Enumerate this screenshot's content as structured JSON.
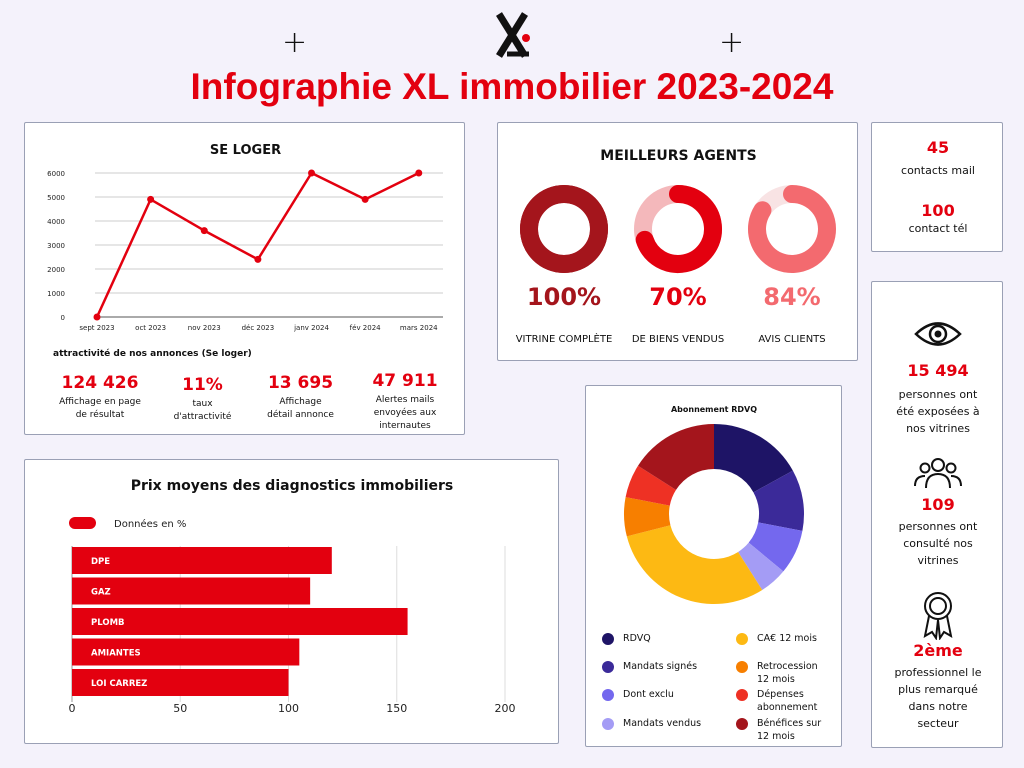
{
  "header": {
    "title": "Infographie XL immobilier 2023-2024",
    "plus_left": "+",
    "plus_right": "+"
  },
  "colors": {
    "accent": "#e3000f",
    "background": "#f4f2fb"
  },
  "seloger": {
    "title": "SE LOGER",
    "subtitle": "attractivité de nos annonces (Se loger)",
    "stats": [
      {
        "value": "124 426",
        "label_1": "Affichage en page",
        "label_2": "de résultat",
        "label_3": ""
      },
      {
        "value": "11%",
        "label_1": "taux",
        "label_2": "d'attractivité",
        "label_3": ""
      },
      {
        "value": "13 695",
        "label_1": "Affichage",
        "label_2": "détail annonce",
        "label_3": ""
      },
      {
        "value": "47 911",
        "label_1": "Alertes mails",
        "label_2": "envoyées aux",
        "label_3": "internautes"
      }
    ]
  },
  "agents": {
    "title": "MEILLEURS AGENTS",
    "items": [
      {
        "value": "100%",
        "fraction": 1.0,
        "label": "VITRINE COMPLÈTE",
        "color": "#a4151c",
        "track": "#a4151c",
        "text_color": "#a4151c"
      },
      {
        "value": "70%",
        "fraction": 0.7,
        "label": "DE BIENS VENDUS",
        "color": "#e3000f",
        "track": "#f4b8bb",
        "text_color": "#e3000f"
      },
      {
        "value": "84%",
        "fraction": 0.84,
        "label": "AVIS CLIENTS",
        "color": "#f36a6f",
        "track": "#f8e3e4",
        "text_color": "#f36a6f"
      }
    ]
  },
  "contacts": {
    "mail_value": "45",
    "mail_label": "contacts mail",
    "tel_value": "100",
    "tel_label": "contact tél"
  },
  "vitrines": {
    "exposed_value": "15 494",
    "exposed_label_1": "personnes ont",
    "exposed_label_2": "été exposées  à",
    "exposed_label_3": "nos vitrines",
    "consulted_value": "109",
    "consulted_label_1": "personnes ont",
    "consulted_label_2": "consulté nos",
    "consulted_label_3": "vitrines",
    "rank_value": "2ème",
    "rank_label_1": "professionnel le",
    "rank_label_2": "plus remarqué",
    "rank_label_3": "dans notre",
    "rank_label_4": "secteur",
    "icons": [
      "eye-icon",
      "users-icon",
      "award-icon"
    ]
  },
  "chart_data": [
    {
      "type": "line",
      "title": "SE LOGER",
      "categories": [
        "sept 2023",
        "oct 2023",
        "nov 2023",
        "déc 2023",
        "janv 2024",
        "fév 2024",
        "mars 2024"
      ],
      "values": [
        0,
        4900,
        3600,
        2400,
        6000,
        4900,
        6000
      ],
      "ylim": [
        0,
        6000
      ],
      "yticks": [
        0,
        1000,
        2000,
        3000,
        4000,
        5000,
        6000
      ],
      "grid": true,
      "color": "#e3000f"
    },
    {
      "type": "bar",
      "orientation": "horizontal",
      "title": "Prix moyens des diagnostics immobiliers",
      "legend": "Données en %",
      "categories": [
        "DPE",
        "GAZ",
        "PLOMB",
        "AMIANTES",
        "LOI CARREZ"
      ],
      "values": [
        120,
        110,
        155,
        105,
        100
      ],
      "xlim": [
        0,
        200
      ],
      "xticks": [
        0,
        50,
        100,
        150,
        200
      ],
      "color": "#e3000f"
    },
    {
      "type": "pie",
      "title": "Abonnement RDVQ",
      "slices": [
        {
          "label": "RDVQ",
          "value": 17,
          "color": "#1e1466"
        },
        {
          "label": "Mandats signés",
          "value": 11,
          "color": "#3b2a99"
        },
        {
          "label": "Dont exclu",
          "value": 8,
          "color": "#7468ee"
        },
        {
          "label": "Mandats vendus",
          "value": 5,
          "color": "#a49cf5"
        },
        {
          "label": "CA€ 12 mois",
          "value": 30,
          "color": "#fdb913"
        },
        {
          "label": "Retrocession 12 mois",
          "value": 7,
          "color": "#f77f00"
        },
        {
          "label": "Dépenses abonnement",
          "value": 6,
          "color": "#ee3124"
        },
        {
          "label": "Bénéfices sur 12 mois",
          "value": 16,
          "color": "#a4151c"
        }
      ]
    }
  ]
}
